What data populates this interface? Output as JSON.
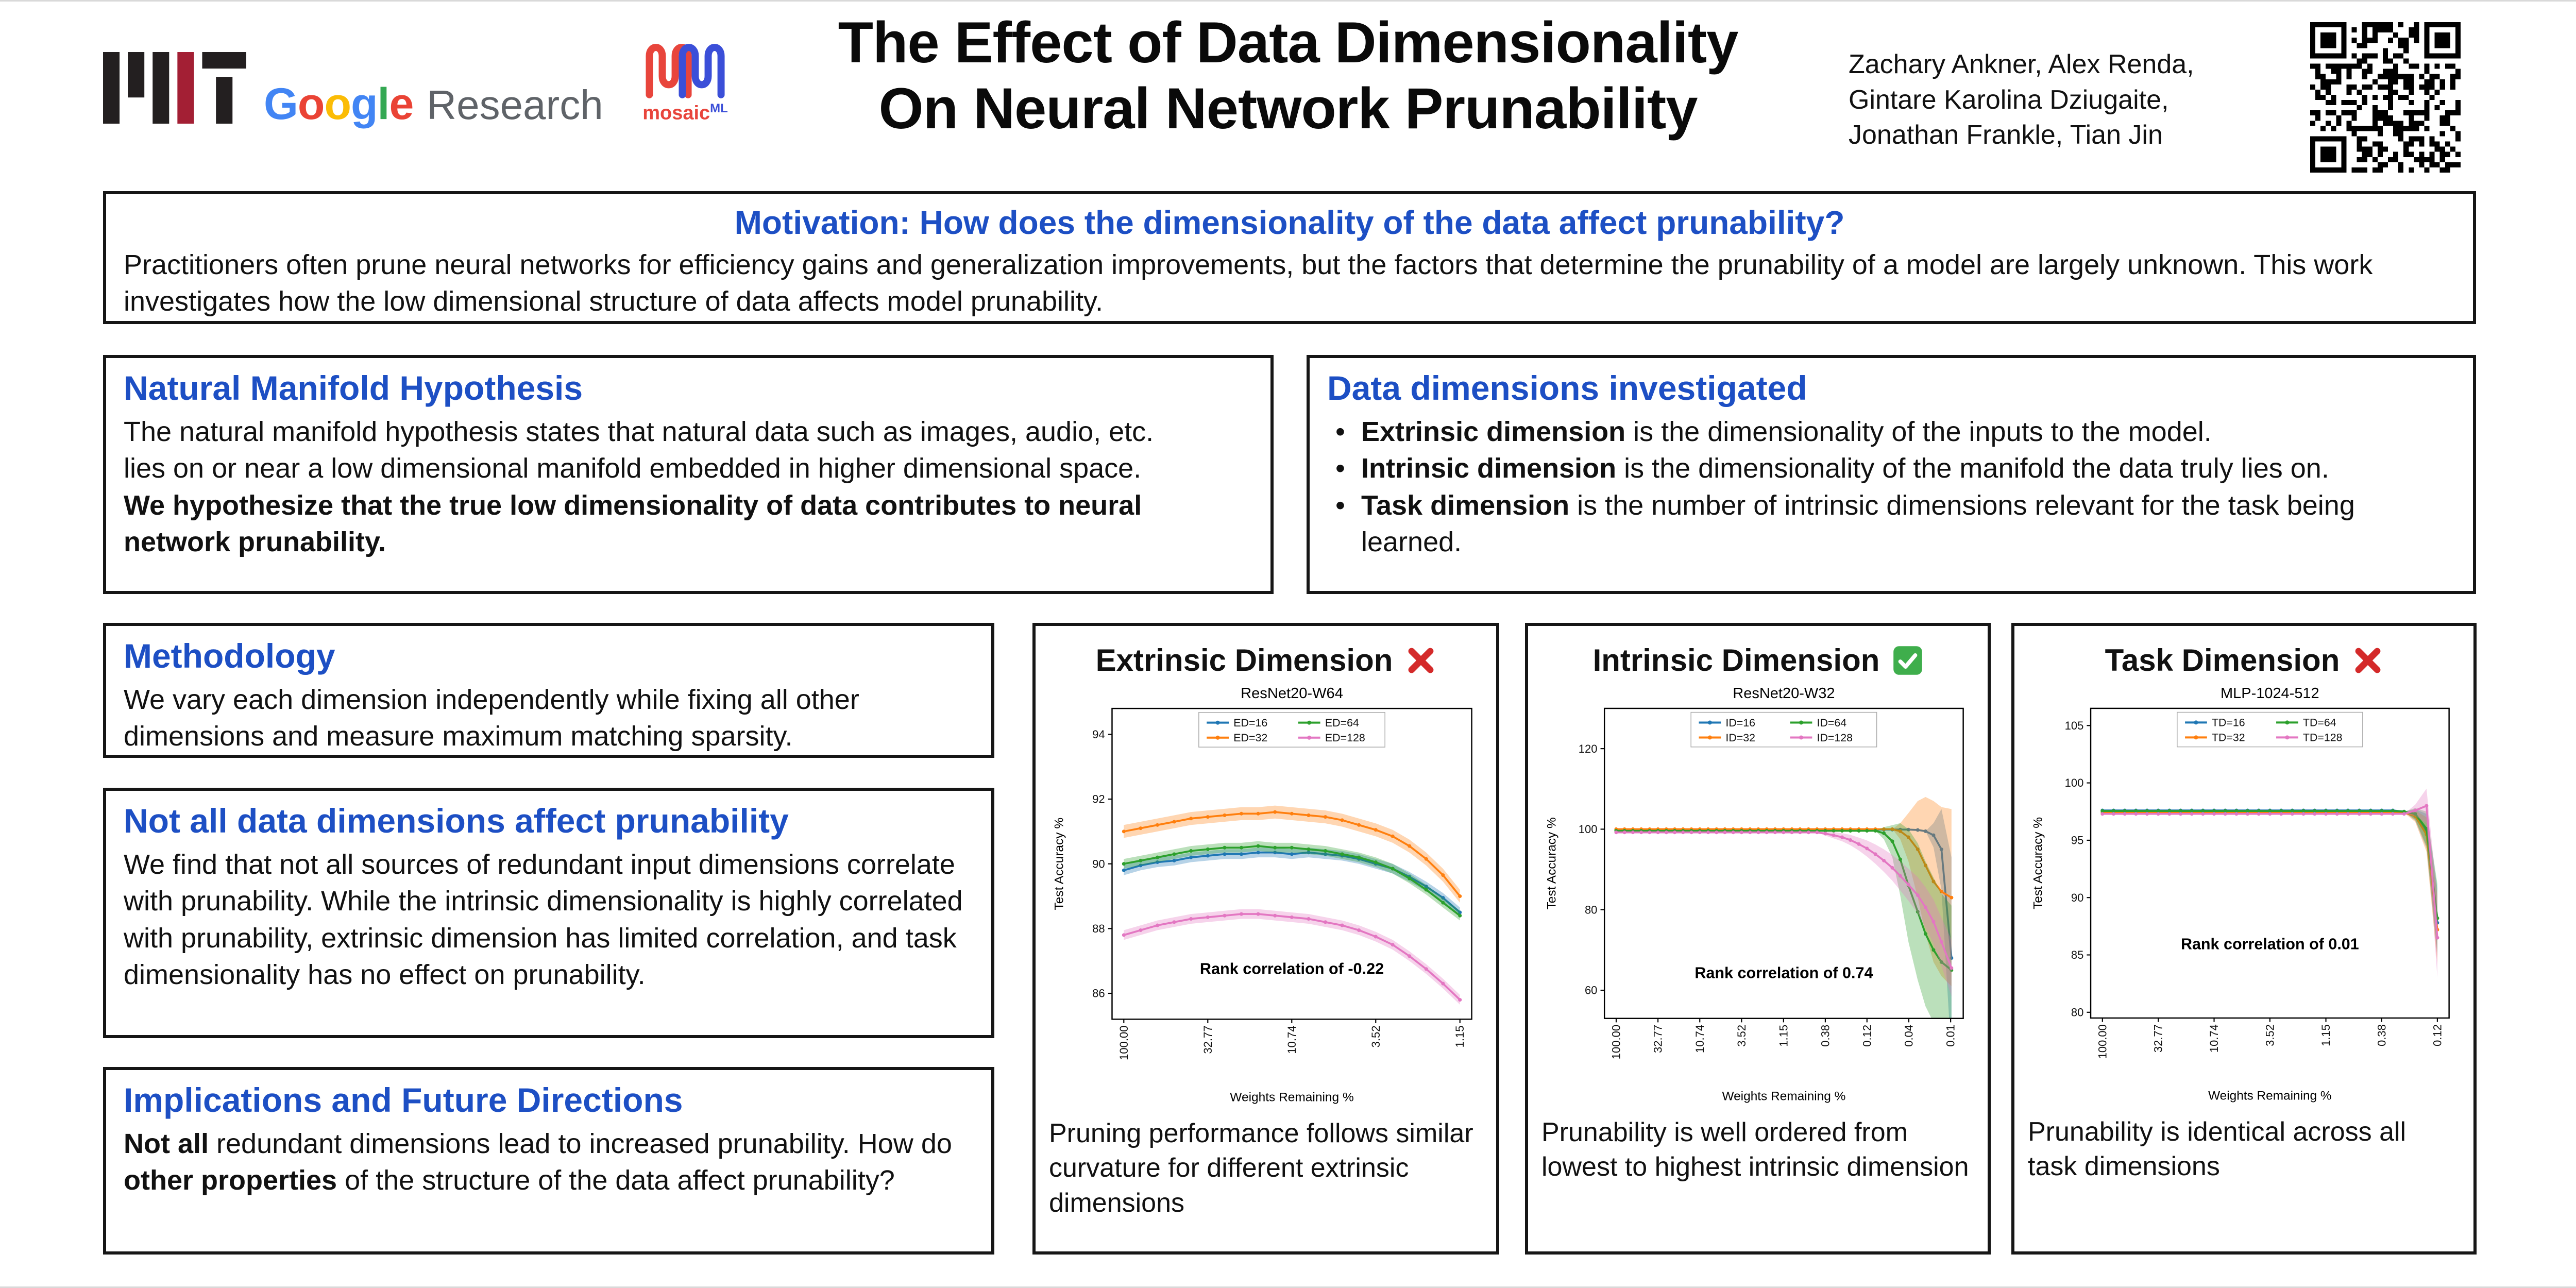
{
  "accent": {
    "heading_blue": "#1d4fc4",
    "border_black": "#161616"
  },
  "header": {
    "title_line1": "The Effect of Data Dimensionality",
    "title_line2": "On Neural Network Prunability",
    "authors": [
      "Zachary Ankner, Alex Renda,",
      "Gintare Karolina Dziugaite,",
      "Jonathan Frankle, Tian Jin"
    ],
    "logos": {
      "mit_black": "#231f20",
      "mit_red": "#a31f34",
      "google": {
        "letters": [
          "G",
          "o",
          "o",
          "g",
          "l",
          "e"
        ],
        "letter_colors": [
          "#4285F4",
          "#EA4335",
          "#FBBC05",
          "#4285F4",
          "#34A853",
          "#EA4335"
        ],
        "suffix": "Research",
        "suffix_color": "#5f6368"
      },
      "mosaic": {
        "text": "mosaic",
        "suffix": "ML",
        "red": "#e8453c",
        "blue": "#3b4fd8"
      }
    }
  },
  "motivation": {
    "title": "Motivation: How does the dimensionality of the data affect prunability?",
    "body": "Practitioners often prune neural networks for efficiency gains and generalization improvements, but the factors that determine the prunability of a model are largely unknown. This work investigates how the low dimensional structure of data affects model prunability."
  },
  "hypothesis": {
    "title": "Natural Manifold Hypothesis",
    "body": "The natural manifold hypothesis states that natural data such as images, audio, etc. lies on or near a low dimensional manifold embedded in higher dimensional space.",
    "emphasis": "We hypothesize that the true low dimensionality of data contributes to neural network prunability."
  },
  "dimensions": {
    "title": "Data dimensions investigated",
    "bullets": [
      {
        "lead": "Extrinsic dimension",
        "rest": " is the dimensionality of the inputs to the model."
      },
      {
        "lead": "Intrinsic dimension",
        "rest": " is the dimensionality of the manifold the data truly lies on."
      },
      {
        "lead": "Task dimension",
        "rest": " is the number of intrinsic dimensions relevant for the task being learned."
      }
    ]
  },
  "methodology": {
    "title": "Methodology",
    "body": "We vary each dimension independently while fixing all other dimensions and measure maximum matching sparsity."
  },
  "findings": {
    "title": "Not all data dimensions affect prunability",
    "body": "We find that not all sources of redundant input dimensions correlate with prunability. While the intrinsic dimensionality is highly correlated with prunability, extrinsic dimension has limited correlation, and task dimensionality has no effect on prunability."
  },
  "implications": {
    "title": "Implications and Future Directions",
    "segments": [
      {
        "text": "Not all",
        "bold": true
      },
      {
        "text": " redundant dimensions lead to increased prunability. How do ",
        "bold": false
      },
      {
        "text": "other properties",
        "bold": true
      },
      {
        "text": " of the structure of the data affect prunability?",
        "bold": false
      }
    ]
  },
  "chart_data": [
    {
      "type": "line",
      "header": "Extrinsic Dimension",
      "verdict": "cross",
      "subtitle": "ResNet20-W64",
      "xlabel": "Weights Remaining %",
      "ylabel": "Test Accuracy %",
      "x_scale": "log",
      "ylim": [
        85.2,
        94.8
      ],
      "y_ticks": [
        86,
        88,
        90,
        92,
        94
      ],
      "x_ticks": [
        100,
        32.77,
        10.74,
        3.52,
        1.15
      ],
      "x_tick_labels": [
        "100.00",
        "32.77",
        "10.74",
        "3.52",
        "1.15"
      ],
      "annotation": "Rank correlation of -0.22",
      "annotation_y": 86.6,
      "caption": "Pruning performance follows similar curvature for different extrinsic dimensions",
      "x": [
        100,
        80,
        64,
        51.2,
        40.96,
        32.77,
        26.21,
        20.97,
        16.78,
        13.42,
        10.74,
        8.59,
        6.87,
        5.5,
        4.4,
        3.52,
        2.81,
        2.25,
        1.8,
        1.44,
        1.15
      ],
      "series": [
        {
          "name": "ED=16",
          "color": "#1f77b4",
          "spread": 0.15,
          "values": [
            89.8,
            89.95,
            90.05,
            90.1,
            90.2,
            90.25,
            90.3,
            90.3,
            90.35,
            90.35,
            90.3,
            90.35,
            90.3,
            90.25,
            90.15,
            90.0,
            89.85,
            89.6,
            89.3,
            88.95,
            88.5
          ]
        },
        {
          "name": "ED=32",
          "color": "#ff7f0e",
          "spread": 0.2,
          "values": [
            91.0,
            91.1,
            91.2,
            91.3,
            91.4,
            91.45,
            91.5,
            91.55,
            91.55,
            91.6,
            91.55,
            91.5,
            91.45,
            91.35,
            91.2,
            91.05,
            90.85,
            90.55,
            90.15,
            89.65,
            89.0
          ]
        },
        {
          "name": "ED=64",
          "color": "#2ca02c",
          "spread": 0.15,
          "values": [
            90.0,
            90.1,
            90.2,
            90.3,
            90.4,
            90.45,
            90.5,
            90.5,
            90.55,
            90.5,
            90.5,
            90.45,
            90.4,
            90.3,
            90.2,
            90.05,
            89.85,
            89.55,
            89.2,
            88.8,
            88.4
          ]
        },
        {
          "name": "ED=128",
          "color": "#e377c2",
          "spread": 0.15,
          "values": [
            87.8,
            87.95,
            88.1,
            88.2,
            88.3,
            88.35,
            88.4,
            88.45,
            88.45,
            88.4,
            88.35,
            88.3,
            88.2,
            88.1,
            87.95,
            87.75,
            87.5,
            87.15,
            86.75,
            86.3,
            85.8
          ]
        }
      ]
    },
    {
      "type": "line",
      "header": "Intrinsic Dimension",
      "verdict": "check",
      "subtitle": "ResNet20-W32",
      "xlabel": "Weights Remaining %",
      "ylabel": "Test Accuracy %",
      "x_scale": "log",
      "ylim": [
        53,
        130
      ],
      "y_ticks": [
        60,
        80,
        100,
        120
      ],
      "x_ticks": [
        100,
        32.77,
        10.74,
        3.52,
        1.15,
        0.377,
        0.124,
        0.0406,
        0.0133
      ],
      "x_tick_labels": [
        "100.00",
        "32.77",
        "10.74",
        "3.52",
        "1.15",
        "0.38",
        "0.12",
        "0.04",
        "0.01"
      ],
      "annotation": "Rank correlation of 0.74",
      "annotation_y": 63,
      "caption": "Prunability is well ordered from lowest to highest intrinsic dimension",
      "x": [
        100,
        80,
        64,
        51.2,
        40.96,
        32.77,
        26.21,
        20.97,
        16.78,
        13.42,
        10.74,
        8.59,
        6.87,
        5.5,
        4.4,
        3.52,
        2.81,
        2.25,
        1.8,
        1.44,
        1.15,
        0.92,
        0.74,
        0.59,
        0.47,
        0.377,
        0.302,
        0.241,
        0.193,
        0.154,
        0.124,
        0.099,
        0.079,
        0.063,
        0.051,
        0.041,
        0.032,
        0.026,
        0.021,
        0.017,
        0.013
      ],
      "series": [
        {
          "name": "ID=16",
          "color": "#1f77b4",
          "values": [
            99.9,
            99.9,
            99.9,
            99.9,
            99.9,
            99.9,
            99.9,
            99.9,
            99.9,
            99.9,
            99.9,
            99.9,
            99.9,
            99.9,
            99.9,
            99.9,
            99.9,
            99.9,
            99.9,
            99.9,
            99.9,
            99.9,
            99.9,
            99.9,
            99.9,
            99.9,
            99.9,
            99.9,
            99.9,
            99.9,
            99.9,
            99.9,
            99.9,
            99.9,
            99.9,
            99.9,
            99.8,
            99.5,
            98.5,
            95,
            68
          ],
          "spread": [
            0,
            0,
            0,
            0,
            0,
            0,
            0,
            0,
            0,
            0,
            0,
            0,
            0,
            0,
            0,
            0,
            0,
            0,
            0,
            0,
            0,
            0,
            0,
            0,
            0,
            0,
            0,
            0,
            0,
            0,
            0,
            0,
            0,
            0,
            0,
            0,
            0,
            0,
            3,
            10,
            25
          ]
        },
        {
          "name": "ID=32",
          "color": "#ff7f0e",
          "values": [
            100,
            100,
            100,
            100,
            100,
            100,
            100,
            100,
            100,
            100,
            100,
            100,
            100,
            100,
            100,
            100,
            100,
            100,
            100,
            100,
            100,
            100,
            100,
            100,
            100,
            100,
            100,
            100,
            100,
            100,
            100,
            100,
            100,
            100,
            99.5,
            98,
            95,
            91,
            87,
            84.5,
            83
          ],
          "spread": [
            0,
            0,
            0,
            0,
            0,
            0,
            0,
            0,
            0,
            0,
            0,
            0,
            0,
            0,
            0,
            0,
            0,
            0,
            0,
            0,
            0,
            0,
            0,
            0,
            0,
            0,
            0,
            0,
            0,
            0,
            0,
            0,
            0,
            0,
            2,
            6,
            12,
            17,
            20,
            21,
            22
          ]
        },
        {
          "name": "ID=64",
          "color": "#2ca02c",
          "values": [
            99.6,
            99.6,
            99.6,
            99.6,
            99.6,
            99.6,
            99.6,
            99.6,
            99.6,
            99.6,
            99.6,
            99.6,
            99.6,
            99.6,
            99.6,
            99.6,
            99.6,
            99.6,
            99.6,
            99.6,
            99.6,
            99.6,
            99.6,
            99.6,
            99.6,
            99.6,
            99.6,
            99.6,
            99.6,
            99.6,
            99.6,
            99.6,
            99,
            97,
            92.5,
            86,
            79.5,
            74,
            70,
            67,
            65
          ],
          "spread": [
            0,
            0,
            0,
            0,
            0,
            0,
            0,
            0,
            0,
            0,
            0,
            0,
            0,
            0,
            0,
            0,
            0,
            0,
            0,
            0,
            0,
            0,
            0,
            0,
            0,
            0,
            0,
            0,
            0,
            0,
            0,
            0,
            1.5,
            4,
            9,
            14,
            17,
            18,
            18,
            17,
            16
          ]
        },
        {
          "name": "ID=128",
          "color": "#e377c2",
          "values": [
            99.2,
            99.2,
            99.2,
            99.2,
            99.2,
            99.2,
            99.2,
            99.2,
            99.2,
            99.2,
            99.2,
            99.2,
            99.2,
            99.2,
            99.2,
            99.2,
            99.2,
            99.2,
            99.2,
            99.2,
            99.2,
            99.2,
            99.2,
            99.2,
            99.2,
            98.9,
            98.5,
            98,
            97.3,
            96.3,
            95.2,
            93.8,
            92.2,
            90.4,
            88.4,
            86.2,
            83.6,
            80.6,
            77,
            72,
            65.5
          ],
          "spread": [
            0,
            0,
            0,
            0,
            0,
            0,
            0,
            0,
            0,
            0,
            0,
            0,
            0,
            0,
            0,
            0,
            0,
            0,
            0,
            0,
            0,
            0,
            0,
            0,
            0,
            0.5,
            0.8,
            1,
            1.3,
            1.6,
            2,
            2.4,
            2.8,
            3.2,
            3.6,
            4,
            4.5,
            5,
            5.5,
            6,
            7
          ]
        }
      ]
    },
    {
      "type": "line",
      "header": "Task Dimension",
      "verdict": "cross",
      "subtitle": "MLP-1024-512",
      "xlabel": "Weights Remaining %",
      "ylabel": "Test Accuracy %",
      "x_scale": "log",
      "ylim": [
        79.5,
        106.5
      ],
      "y_ticks": [
        80,
        85,
        90,
        95,
        100,
        105
      ],
      "x_ticks": [
        100,
        32.77,
        10.74,
        3.52,
        1.15,
        0.377,
        0.124
      ],
      "x_tick_labels": [
        "100.00",
        "32.77",
        "10.74",
        "3.52",
        "1.15",
        "0.38",
        "0.12"
      ],
      "annotation": "Rank correlation of 0.01",
      "annotation_y": 85.5,
      "caption": "Prunability is identical across all task dimensions",
      "x": [
        100,
        80,
        64,
        51.2,
        40.96,
        32.77,
        26.21,
        20.97,
        16.78,
        13.42,
        10.74,
        8.59,
        6.87,
        5.5,
        4.4,
        3.52,
        2.81,
        2.25,
        1.8,
        1.44,
        1.15,
        0.92,
        0.74,
        0.59,
        0.47,
        0.377,
        0.302,
        0.241,
        0.193,
        0.154,
        0.124
      ],
      "series": [
        {
          "name": "TD=16",
          "color": "#1f77b4",
          "values": [
            97.6,
            97.6,
            97.6,
            97.6,
            97.6,
            97.6,
            97.6,
            97.6,
            97.6,
            97.6,
            97.6,
            97.6,
            97.6,
            97.6,
            97.6,
            97.6,
            97.6,
            97.6,
            97.6,
            97.6,
            97.6,
            97.6,
            97.6,
            97.6,
            97.6,
            97.6,
            97.6,
            97.5,
            97.2,
            95.8,
            87.8
          ],
          "spread": [
            0,
            0,
            0,
            0,
            0,
            0,
            0,
            0,
            0,
            0,
            0,
            0,
            0,
            0,
            0,
            0,
            0,
            0,
            0,
            0,
            0,
            0,
            0,
            0,
            0,
            0,
            0,
            0,
            0.5,
            1.5,
            3
          ]
        },
        {
          "name": "TD=32",
          "color": "#ff7f0e",
          "values": [
            97.45,
            97.45,
            97.45,
            97.45,
            97.45,
            97.45,
            97.45,
            97.45,
            97.45,
            97.45,
            97.45,
            97.45,
            97.45,
            97.45,
            97.45,
            97.45,
            97.45,
            97.45,
            97.45,
            97.45,
            97.45,
            97.45,
            97.45,
            97.45,
            97.45,
            97.45,
            97.45,
            97.4,
            97.1,
            95.5,
            87.2
          ],
          "spread": [
            0,
            0,
            0,
            0,
            0,
            0,
            0,
            0,
            0,
            0,
            0,
            0,
            0,
            0,
            0,
            0,
            0,
            0,
            0,
            0,
            0,
            0,
            0,
            0,
            0,
            0,
            0,
            0,
            0.5,
            1.5,
            3
          ]
        },
        {
          "name": "TD=64",
          "color": "#2ca02c",
          "values": [
            97.55,
            97.55,
            97.55,
            97.55,
            97.55,
            97.55,
            97.55,
            97.55,
            97.55,
            97.55,
            97.55,
            97.55,
            97.55,
            97.55,
            97.55,
            97.55,
            97.55,
            97.55,
            97.55,
            97.55,
            97.55,
            97.55,
            97.55,
            97.55,
            97.55,
            97.55,
            97.55,
            97.5,
            97.3,
            96,
            88.2
          ],
          "spread": [
            0,
            0,
            0,
            0,
            0,
            0,
            0,
            0,
            0,
            0,
            0,
            0,
            0,
            0,
            0,
            0,
            0,
            0,
            0,
            0,
            0,
            0,
            0,
            0,
            0,
            0,
            0,
            0,
            0.5,
            1.5,
            3
          ]
        },
        {
          "name": "TD=128",
          "color": "#e377c2",
          "values": [
            97.3,
            97.3,
            97.3,
            97.3,
            97.3,
            97.3,
            97.3,
            97.3,
            97.3,
            97.3,
            97.3,
            97.3,
            97.3,
            97.3,
            97.3,
            97.3,
            97.3,
            97.3,
            97.3,
            97.3,
            97.3,
            97.3,
            97.3,
            97.3,
            97.3,
            97.3,
            97.3,
            97.3,
            97.6,
            98,
            86.5
          ],
          "spread": [
            0,
            0,
            0,
            0,
            0,
            0,
            0,
            0,
            0,
            0,
            0,
            0,
            0,
            0,
            0,
            0,
            0,
            0,
            0,
            0,
            0,
            0,
            0,
            0,
            0,
            0,
            0,
            0,
            0.5,
            1.5,
            3.5
          ]
        }
      ]
    }
  ]
}
